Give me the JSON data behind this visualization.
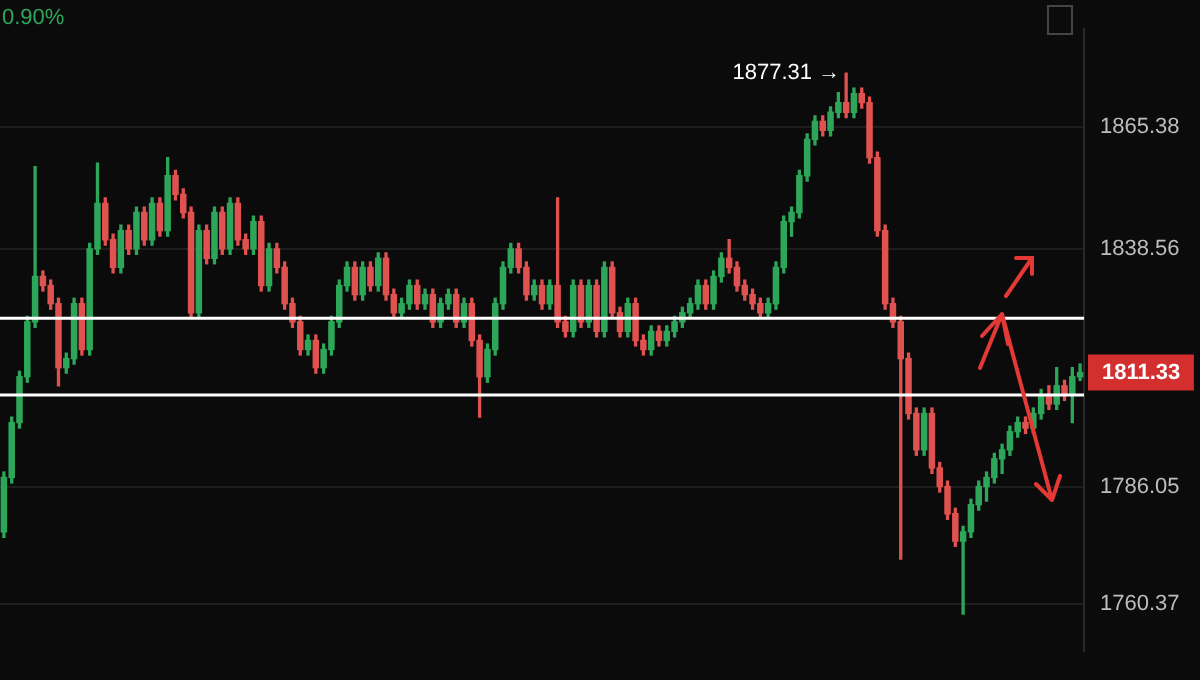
{
  "chart_data": {
    "type": "candlestick",
    "categories": [
      null,
      null,
      null,
      null,
      null,
      null,
      null,
      null,
      null,
      null,
      null,
      null,
      null,
      null,
      null,
      null,
      null,
      null,
      null,
      null,
      null,
      null,
      null,
      null,
      null,
      null,
      null,
      null,
      null,
      null,
      null,
      null,
      null,
      null,
      null,
      null,
      null,
      null,
      null,
      null,
      null,
      null,
      null,
      null,
      null,
      null,
      null,
      null,
      null,
      null,
      null,
      null,
      null,
      null,
      null,
      null,
      null,
      null,
      null,
      null,
      null,
      null,
      null,
      null,
      null,
      null,
      null,
      null,
      null,
      null,
      null,
      null,
      null,
      null,
      null,
      null,
      null,
      null,
      null,
      null,
      null,
      null,
      null,
      null,
      null,
      null,
      null,
      null,
      null,
      null,
      null,
      null,
      null,
      null,
      null,
      null,
      null,
      null,
      null,
      null,
      null,
      null,
      null,
      null,
      null,
      null,
      null,
      null,
      null,
      null,
      null,
      null,
      null,
      null,
      null,
      null,
      null,
      null,
      null,
      null,
      null,
      null,
      null,
      null,
      null,
      null,
      null,
      null,
      null,
      null,
      null,
      null,
      null,
      null,
      null,
      null,
      null,
      null,
      null
    ],
    "ohlc": [
      [
        1776.2,
        1789.4,
        1775.0,
        1788.2
      ],
      [
        1788.2,
        1801.5,
        1787.0,
        1800.3
      ],
      [
        1800.3,
        1811.6,
        1799.1,
        1810.4
      ],
      [
        1810.4,
        1823.7,
        1809.2,
        1822.5
      ],
      [
        1822.5,
        1856.7,
        1821.3,
        1832.5
      ],
      [
        1832.5,
        1833.7,
        1829.3,
        1830.5
      ],
      [
        1830.5,
        1831.7,
        1825.3,
        1826.5
      ],
      [
        1826.5,
        1827.7,
        1808.4,
        1812.4
      ],
      [
        1812.4,
        1815.6,
        1811.2,
        1814.4
      ],
      [
        1814.4,
        1827.7,
        1813.2,
        1826.5
      ],
      [
        1826.5,
        1827.7,
        1815.2,
        1816.4
      ],
      [
        1816.4,
        1839.8,
        1815.2,
        1838.6
      ],
      [
        1838.6,
        1857.5,
        1837.4,
        1848.6
      ],
      [
        1848.6,
        1849.8,
        1839.4,
        1840.6
      ],
      [
        1840.6,
        1841.8,
        1833.3,
        1834.5
      ],
      [
        1834.5,
        1843.8,
        1833.3,
        1842.6
      ],
      [
        1842.6,
        1843.8,
        1837.4,
        1838.6
      ],
      [
        1838.6,
        1847.8,
        1837.4,
        1846.6
      ],
      [
        1846.6,
        1847.8,
        1839.4,
        1840.6
      ],
      [
        1840.6,
        1849.8,
        1839.4,
        1848.6
      ],
      [
        1848.6,
        1849.8,
        1841.4,
        1842.6
      ],
      [
        1842.6,
        1858.7,
        1841.4,
        1854.7
      ],
      [
        1854.7,
        1855.9,
        1849.4,
        1850.6
      ],
      [
        1850.6,
        1851.8,
        1845.4,
        1846.6
      ],
      [
        1846.6,
        1847.8,
        1823.3,
        1824.5
      ],
      [
        1824.5,
        1843.8,
        1823.3,
        1842.6
      ],
      [
        1842.6,
        1843.8,
        1835.3,
        1836.5
      ],
      [
        1836.5,
        1847.8,
        1835.3,
        1846.6
      ],
      [
        1846.6,
        1847.8,
        1837.4,
        1838.6
      ],
      [
        1838.6,
        1849.8,
        1837.4,
        1848.6
      ],
      [
        1848.6,
        1849.8,
        1839.4,
        1840.6
      ],
      [
        1840.6,
        1841.8,
        1837.4,
        1838.6
      ],
      [
        1838.6,
        1845.8,
        1837.4,
        1844.6
      ],
      [
        1844.6,
        1845.8,
        1829.3,
        1830.5
      ],
      [
        1830.5,
        1839.8,
        1829.3,
        1838.6
      ],
      [
        1838.6,
        1839.8,
        1833.3,
        1834.5
      ],
      [
        1834.5,
        1835.7,
        1825.3,
        1826.5
      ],
      [
        1826.5,
        1827.7,
        1821.3,
        1822.5
      ],
      [
        1822.5,
        1823.7,
        1815.2,
        1816.4
      ],
      [
        1816.4,
        1819.6,
        1815.2,
        1818.4
      ],
      [
        1818.4,
        1819.6,
        1811.2,
        1812.4
      ],
      [
        1812.4,
        1817.6,
        1811.2,
        1816.4
      ],
      [
        1816.4,
        1823.7,
        1815.2,
        1822.5
      ],
      [
        1822.5,
        1831.7,
        1821.3,
        1830.5
      ],
      [
        1830.5,
        1835.7,
        1829.3,
        1834.5
      ],
      [
        1834.5,
        1835.7,
        1827.3,
        1828.5
      ],
      [
        1828.5,
        1835.7,
        1827.3,
        1834.5
      ],
      [
        1834.5,
        1835.7,
        1829.3,
        1830.5
      ],
      [
        1830.5,
        1837.7,
        1829.3,
        1836.5
      ],
      [
        1836.5,
        1837.7,
        1827.3,
        1828.5
      ],
      [
        1828.5,
        1829.7,
        1823.3,
        1824.5
      ],
      [
        1824.5,
        1827.7,
        1823.3,
        1826.5
      ],
      [
        1826.5,
        1831.7,
        1825.3,
        1830.5
      ],
      [
        1830.5,
        1831.7,
        1825.3,
        1826.5
      ],
      [
        1826.5,
        1829.7,
        1825.3,
        1828.5
      ],
      [
        1828.5,
        1829.7,
        1821.3,
        1822.5
      ],
      [
        1822.5,
        1827.7,
        1821.3,
        1826.5
      ],
      [
        1826.5,
        1829.7,
        1825.3,
        1828.5
      ],
      [
        1828.5,
        1829.7,
        1821.3,
        1822.5
      ],
      [
        1822.5,
        1827.7,
        1821.3,
        1826.5
      ],
      [
        1826.5,
        1827.7,
        1817.2,
        1818.4
      ],
      [
        1818.4,
        1819.6,
        1801.5,
        1810.4
      ],
      [
        1810.4,
        1817.6,
        1809.2,
        1816.4
      ],
      [
        1816.4,
        1827.7,
        1815.2,
        1826.5
      ],
      [
        1826.5,
        1835.7,
        1825.3,
        1834.5
      ],
      [
        1834.5,
        1839.8,
        1833.3,
        1838.6
      ],
      [
        1838.6,
        1839.8,
        1833.3,
        1834.5
      ],
      [
        1834.5,
        1835.7,
        1827.3,
        1828.5
      ],
      [
        1828.5,
        1831.7,
        1827.3,
        1830.5
      ],
      [
        1830.5,
        1831.7,
        1825.3,
        1826.5
      ],
      [
        1826.5,
        1831.7,
        1825.3,
        1830.5
      ],
      [
        1830.5,
        1849.8,
        1821.3,
        1822.5
      ],
      [
        1822.5,
        1823.7,
        1819.2,
        1820.4
      ],
      [
        1820.4,
        1831.7,
        1819.2,
        1830.5
      ],
      [
        1830.5,
        1831.7,
        1821.3,
        1822.5
      ],
      [
        1822.5,
        1831.7,
        1821.3,
        1830.5
      ],
      [
        1830.5,
        1831.7,
        1819.2,
        1820.4
      ],
      [
        1820.4,
        1835.7,
        1819.2,
        1834.5
      ],
      [
        1834.5,
        1835.7,
        1823.3,
        1824.5
      ],
      [
        1824.5,
        1825.7,
        1819.2,
        1820.4
      ],
      [
        1820.4,
        1827.7,
        1819.2,
        1826.5
      ],
      [
        1826.5,
        1827.7,
        1817.2,
        1818.4
      ],
      [
        1818.4,
        1819.6,
        1815.2,
        1816.4
      ],
      [
        1816.4,
        1821.6,
        1815.2,
        1820.4
      ],
      [
        1820.4,
        1821.6,
        1817.2,
        1818.4
      ],
      [
        1818.4,
        1821.6,
        1817.2,
        1820.4
      ],
      [
        1820.4,
        1823.7,
        1819.2,
        1822.5
      ],
      [
        1822.5,
        1825.7,
        1821.3,
        1824.5
      ],
      [
        1824.5,
        1827.7,
        1823.3,
        1826.5
      ],
      [
        1826.5,
        1831.7,
        1825.3,
        1830.5
      ],
      [
        1830.5,
        1831.7,
        1825.3,
        1826.5
      ],
      [
        1826.5,
        1833.7,
        1825.3,
        1832.5
      ],
      [
        1832.5,
        1837.7,
        1831.3,
        1836.5
      ],
      [
        1836.5,
        1840.6,
        1833.3,
        1834.5
      ],
      [
        1834.5,
        1835.7,
        1829.3,
        1830.5
      ],
      [
        1830.5,
        1831.7,
        1827.3,
        1828.5
      ],
      [
        1828.5,
        1829.7,
        1825.3,
        1826.5
      ],
      [
        1826.5,
        1827.7,
        1823.3,
        1824.5
      ],
      [
        1824.5,
        1827.7,
        1823.3,
        1826.5
      ],
      [
        1826.5,
        1835.7,
        1825.3,
        1834.5
      ],
      [
        1834.5,
        1845.8,
        1833.3,
        1844.6
      ],
      [
        1844.6,
        1847.8,
        1841.4,
        1846.6
      ],
      [
        1846.6,
        1855.9,
        1845.4,
        1854.7
      ],
      [
        1854.7,
        1863.9,
        1853.5,
        1862.7
      ],
      [
        1862.7,
        1867.9,
        1861.5,
        1866.7
      ],
      [
        1866.7,
        1867.9,
        1863.5,
        1864.7
      ],
      [
        1864.7,
        1869.9,
        1863.5,
        1868.7
      ],
      [
        1868.7,
        1873.0,
        1867.5,
        1870.8
      ],
      [
        1870.8,
        1877.31,
        1867.5,
        1868.7
      ],
      [
        1868.7,
        1874.0,
        1867.5,
        1872.8
      ],
      [
        1872.8,
        1874.0,
        1869.6,
        1870.8
      ],
      [
        1870.8,
        1872.0,
        1857.5,
        1858.7
      ],
      [
        1858.7,
        1859.9,
        1841.4,
        1842.6
      ],
      [
        1842.6,
        1843.8,
        1825.3,
        1826.5
      ],
      [
        1826.5,
        1827.7,
        1821.3,
        1822.5
      ],
      [
        1822.5,
        1823.7,
        1770.2,
        1814.4
      ],
      [
        1814.4,
        1815.6,
        1801.1,
        1802.3
      ],
      [
        1802.3,
        1803.5,
        1793.1,
        1794.3
      ],
      [
        1794.3,
        1803.5,
        1793.1,
        1802.3
      ],
      [
        1802.3,
        1803.5,
        1789.1,
        1790.3
      ],
      [
        1790.3,
        1791.5,
        1785.0,
        1786.2
      ],
      [
        1786.2,
        1787.4,
        1779.0,
        1780.2
      ],
      [
        1780.2,
        1781.4,
        1773.0,
        1774.2
      ],
      [
        1774.2,
        1777.4,
        1758.1,
        1776.2
      ],
      [
        1776.2,
        1783.4,
        1775.0,
        1782.2
      ],
      [
        1782.2,
        1787.4,
        1781.0,
        1786.2
      ],
      [
        1786.2,
        1789.4,
        1783.0,
        1788.2
      ],
      [
        1788.2,
        1793.5,
        1787.0,
        1792.3
      ],
      [
        1792.3,
        1795.5,
        1789.1,
        1794.3
      ],
      [
        1794.3,
        1799.5,
        1793.1,
        1798.3
      ],
      [
        1798.3,
        1801.5,
        1797.1,
        1800.3
      ],
      [
        1800.3,
        1801.5,
        1797.9,
        1799.1
      ],
      [
        1799.1,
        1803.5,
        1797.9,
        1802.3
      ],
      [
        1802.3,
        1807.6,
        1801.1,
        1806.4
      ],
      [
        1806.4,
        1808.4,
        1803.2,
        1804.4
      ],
      [
        1804.4,
        1812.4,
        1803.2,
        1808.4
      ],
      [
        1808.4,
        1809.6,
        1805.2,
        1806.4
      ],
      [
        1806.4,
        1812.4,
        1800.3,
        1810.4
      ],
      [
        1810.4,
        1813.2,
        1809.6,
        1811.33
      ]
    ],
    "ylim": [
      1750,
      1887
    ],
    "yticks": [
      1865.38,
      1838.56,
      1786.05,
      1760.37
    ],
    "grid": "y",
    "ref_lines": [
      {
        "axis": "y",
        "value": 1823.3,
        "color": "#ffffff"
      },
      {
        "axis": "y",
        "value": 1806.4,
        "color": "#ffffff"
      }
    ],
    "annotations": [
      "0.90%",
      "1877.31 →",
      "1811.33"
    ]
  }
}
